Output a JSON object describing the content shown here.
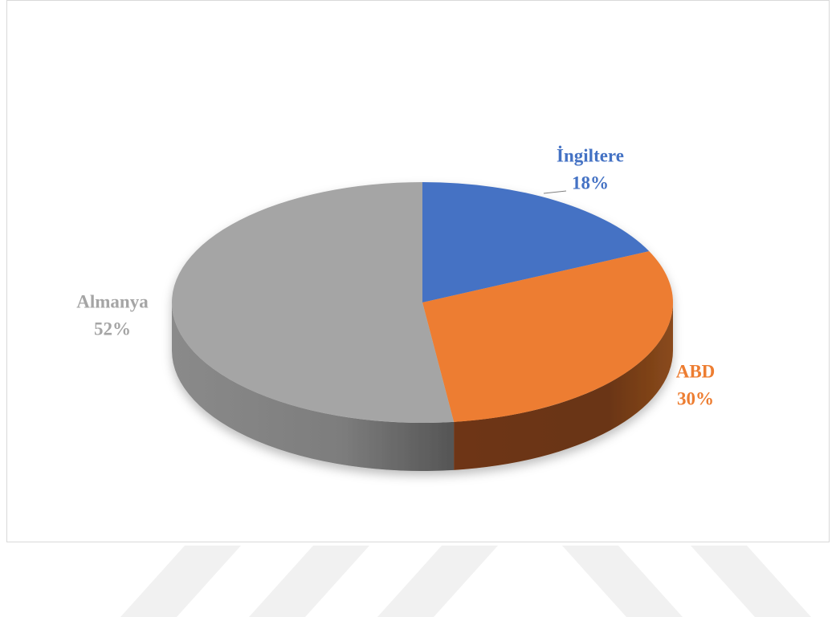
{
  "chart_data": {
    "type": "pie",
    "categories": [
      "İngiltere",
      "ABD",
      "Almanya"
    ],
    "values": [
      18,
      30,
      52
    ],
    "value_labels": [
      "18%",
      "30%",
      "52%"
    ],
    "colors": [
      "#4472c4",
      "#ed7d31",
      "#a5a5a5"
    ]
  }
}
